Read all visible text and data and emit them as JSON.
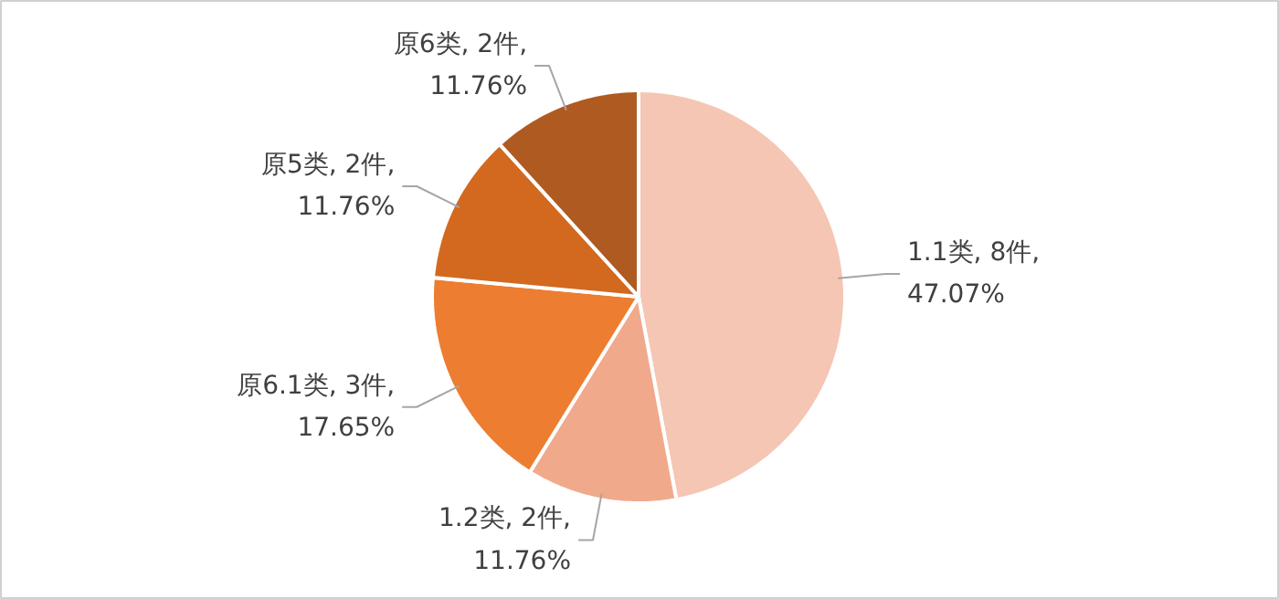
{
  "chart_data": {
    "type": "pie",
    "categories": [
      "1.1类",
      "1.2类",
      "原6.1类",
      "原5类",
      "原6类"
    ],
    "values": [
      47.07,
      11.76,
      17.65,
      11.76,
      11.76
    ],
    "value_labels": [
      "8件,\n47.07%",
      "2件,\n11.76%",
      "3件,\n17.65%",
      "2件,\n11.76%",
      "2件,\n11.76%"
    ],
    "colors": [
      "#f5c6b4",
      "#f1a98b",
      "#ed7d31",
      "#d2691f",
      "#ae5a21"
    ]
  }
}
